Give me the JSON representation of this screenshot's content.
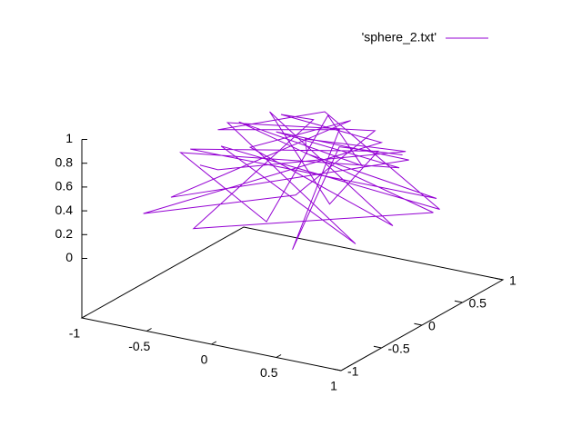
{
  "chart_data": {
    "type": "line3d",
    "xlim": [
      -1,
      1
    ],
    "ylim": [
      -1,
      1
    ],
    "zlim": [
      0,
      1
    ],
    "ticslevel": 0.5,
    "xticks": [
      -1,
      -0.5,
      0,
      0.5,
      1
    ],
    "yticks": [
      -1,
      -0.5,
      0,
      0.5,
      1
    ],
    "zticks": [
      0,
      0.2,
      0.4,
      0.6,
      0.8,
      1
    ],
    "legend": "top-right",
    "series": [
      {
        "name": "'sphere_2.txt'",
        "color": "#9400d3",
        "x": [
          -0.9,
          -0.2,
          0.5,
          -0.4,
          0.3,
          0.8,
          -0.6,
          0.1,
          0.6,
          -0.3,
          0.9,
          -0.7,
          0.2,
          -0.5,
          0.4,
          0.0,
          0.7,
          -0.8,
          0.3,
          -0.1,
          0.6,
          -0.6,
          0.9,
          -0.2,
          0.1,
          -0.4,
          0.5,
          -0.9,
          0.4,
          0.2,
          -0.5,
          0.8,
          -0.3,
          0.7,
          0.0,
          -0.7,
          0.3,
          0.5,
          -0.2,
          0.6
        ],
        "y": [
          0.3,
          -0.6,
          0.6,
          0.8,
          -0.3,
          0.5,
          -0.3,
          0.9,
          -0.5,
          0.2,
          -0.2,
          0.6,
          0.4,
          -0.7,
          0.8,
          -0.2,
          0.2,
          -0.1,
          -0.8,
          0.6,
          -0.1,
          0.3,
          0.3,
          -0.9,
          0.1,
          0.5,
          0.3,
          -0.4,
          -0.6,
          0.7,
          0.0,
          -0.5,
          -0.4,
          0.7,
          0.4,
          0.2,
          0.1,
          -0.8,
          0.9,
          0.4
        ],
        "z": [
          0.31,
          0.77,
          0.62,
          0.45,
          0.9,
          0.33,
          0.74,
          0.42,
          0.62,
          0.93,
          0.39,
          0.39,
          0.89,
          0.51,
          0.45,
          0.98,
          0.68,
          0.59,
          0.52,
          0.79,
          0.79,
          0.74,
          0.31,
          0.39,
          0.99,
          0.77,
          0.81,
          0.17,
          0.69,
          0.69,
          0.87,
          0.33,
          0.87,
          0.14,
          0.92,
          0.69,
          0.95,
          0.33,
          0.39,
          0.69
        ]
      }
    ]
  }
}
